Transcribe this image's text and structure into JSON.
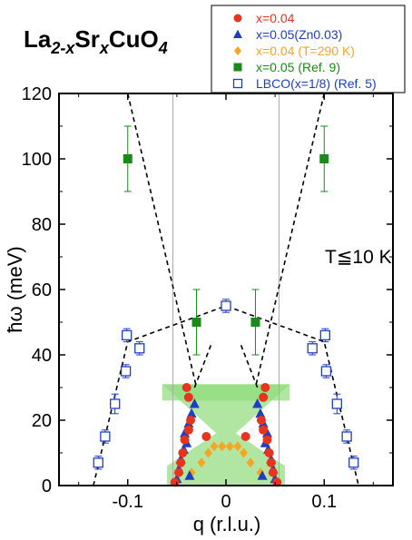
{
  "chart_data": {
    "type": "scatter",
    "title_parts": [
      {
        "text": "La",
        "sub": false
      },
      {
        "text": "2-x",
        "sub": true
      },
      {
        "text": "Sr",
        "sub": false
      },
      {
        "text": "x",
        "sub": true
      },
      {
        "text": "CuO",
        "sub": false
      },
      {
        "text": "4",
        "sub": true
      }
    ],
    "xlabel": "q (r.l.u.)",
    "ylabel": "ħω (meV)",
    "xlim": [
      -0.17,
      0.17
    ],
    "ylim": [
      0,
      120
    ],
    "xticks": [
      -0.1,
      0,
      0.1
    ],
    "xtick_labels": [
      "-0.1",
      "0",
      "0.1"
    ],
    "yticks": [
      0,
      20,
      40,
      60,
      80,
      100,
      120
    ],
    "ytick_labels": [
      "0",
      "20",
      "40",
      "60",
      "80",
      "100",
      "120"
    ],
    "annotation": "T≦10 K",
    "vertical_lines_x": [
      -0.054,
      0.054
    ],
    "legend": [
      {
        "label": "x=0.04",
        "color": "#e8341c",
        "marker": "circle"
      },
      {
        "label": "x=0.05(Zn0.03)",
        "color": "#1f3fbf",
        "marker": "triangle"
      },
      {
        "label": "x=0.04 (T=290 K)",
        "color": "#f5a623",
        "marker": "diamond"
      },
      {
        "label": "x=0.05 (Ref. 9)",
        "color": "#1a8a1a",
        "marker": "square"
      },
      {
        "label": "LBCO(x=1/8) (Ref. 5)",
        "color": "#1f3fbf",
        "marker": "open-square"
      }
    ],
    "series": [
      {
        "name": "x=0.04",
        "color": "#e8341c",
        "marker": "circle",
        "points": [
          [
            -0.052,
            1
          ],
          [
            -0.048,
            4
          ],
          [
            -0.046,
            7
          ],
          [
            -0.044,
            10
          ],
          [
            -0.042,
            14
          ],
          [
            -0.038,
            17
          ],
          [
            -0.036,
            20
          ],
          [
            -0.038,
            27
          ],
          [
            -0.04,
            30
          ],
          [
            -0.02,
            15
          ],
          [
            0.052,
            1
          ],
          [
            0.048,
            4
          ],
          [
            0.046,
            7
          ],
          [
            0.044,
            10
          ],
          [
            0.042,
            14
          ],
          [
            0.038,
            17
          ],
          [
            0.036,
            20
          ],
          [
            0.038,
            27
          ],
          [
            0.04,
            30
          ],
          [
            0.02,
            15
          ]
        ]
      },
      {
        "name": "x=0.05(Zn0.03)",
        "color": "#1f3fbf",
        "marker": "triangle",
        "points": [
          [
            -0.05,
            2
          ],
          [
            -0.048,
            5
          ],
          [
            -0.046,
            8
          ],
          [
            -0.043,
            11
          ],
          [
            -0.04,
            13
          ],
          [
            -0.042,
            16
          ],
          [
            -0.038,
            19
          ],
          [
            -0.035,
            22
          ],
          [
            -0.032,
            25
          ],
          [
            -0.037,
            3
          ],
          [
            0.05,
            2
          ],
          [
            0.048,
            5
          ],
          [
            0.046,
            8
          ],
          [
            0.043,
            11
          ],
          [
            0.04,
            13
          ],
          [
            0.042,
            16
          ],
          [
            0.038,
            19
          ],
          [
            0.035,
            22
          ],
          [
            0.032,
            25
          ],
          [
            0.037,
            3
          ]
        ]
      },
      {
        "name": "x=0.04 (T=290 K)",
        "color": "#f5a623",
        "marker": "diamond",
        "points": [
          [
            -0.035,
            4
          ],
          [
            -0.025,
            7
          ],
          [
            -0.018,
            10
          ],
          [
            -0.012,
            12
          ],
          [
            -0.004,
            12
          ],
          [
            0.004,
            12
          ],
          [
            0.012,
            12
          ],
          [
            0.018,
            10
          ],
          [
            0.025,
            7
          ],
          [
            0.035,
            4
          ]
        ]
      },
      {
        "name": "x=0.05 (Ref. 9)",
        "color": "#1a8a1a",
        "marker": "square",
        "points": [
          [
            -0.1,
            100
          ],
          [
            0.1,
            100
          ],
          [
            -0.03,
            50
          ],
          [
            0.03,
            50
          ]
        ],
        "errors": [
          10,
          10,
          10,
          10
        ]
      },
      {
        "name": "LBCO(x=1/8) (Ref. 5)",
        "color": "#1f3fbf",
        "marker": "open-square",
        "points": [
          [
            -0.13,
            7
          ],
          [
            -0.123,
            15
          ],
          [
            -0.113,
            25
          ],
          [
            -0.102,
            35
          ],
          [
            -0.101,
            46
          ],
          [
            -0.088,
            42
          ],
          [
            0,
            55
          ],
          [
            0.088,
            42
          ],
          [
            0.101,
            46
          ],
          [
            0.102,
            35
          ],
          [
            0.113,
            25
          ],
          [
            0.123,
            15
          ],
          [
            0.13,
            7
          ]
        ],
        "errors": [
          2,
          2,
          3,
          2,
          2,
          2,
          2,
          2,
          2,
          2,
          3,
          2,
          2
        ]
      }
    ],
    "dispersion_lines": [
      {
        "points": [
          [
            -0.1,
            120
          ],
          [
            -0.03,
            30
          ]
        ]
      },
      {
        "points": [
          [
            0.1,
            120
          ],
          [
            0.03,
            30
          ]
        ]
      },
      {
        "points": [
          [
            -0.135,
            0
          ],
          [
            -0.1,
            44
          ],
          [
            0,
            55
          ],
          [
            0.1,
            44
          ],
          [
            0.135,
            0
          ]
        ]
      },
      {
        "points": [
          [
            -0.032,
            30
          ],
          [
            -0.014,
            44
          ]
        ]
      },
      {
        "points": [
          [
            0.032,
            30
          ],
          [
            0.014,
            44
          ]
        ]
      }
    ],
    "green_region": {
      "color": "#8fdc7a",
      "upper_box": {
        "x": [
          -0.065,
          0.065
        ],
        "y": [
          26,
          31
        ]
      },
      "x_shape": [
        [
          -0.065,
          31
        ],
        [
          0.065,
          31
        ],
        [
          0.01,
          16
        ],
        [
          0.06,
          6
        ],
        [
          0.06,
          0
        ],
        [
          -0.06,
          0
        ],
        [
          -0.06,
          6
        ],
        [
          -0.01,
          16
        ]
      ]
    }
  }
}
